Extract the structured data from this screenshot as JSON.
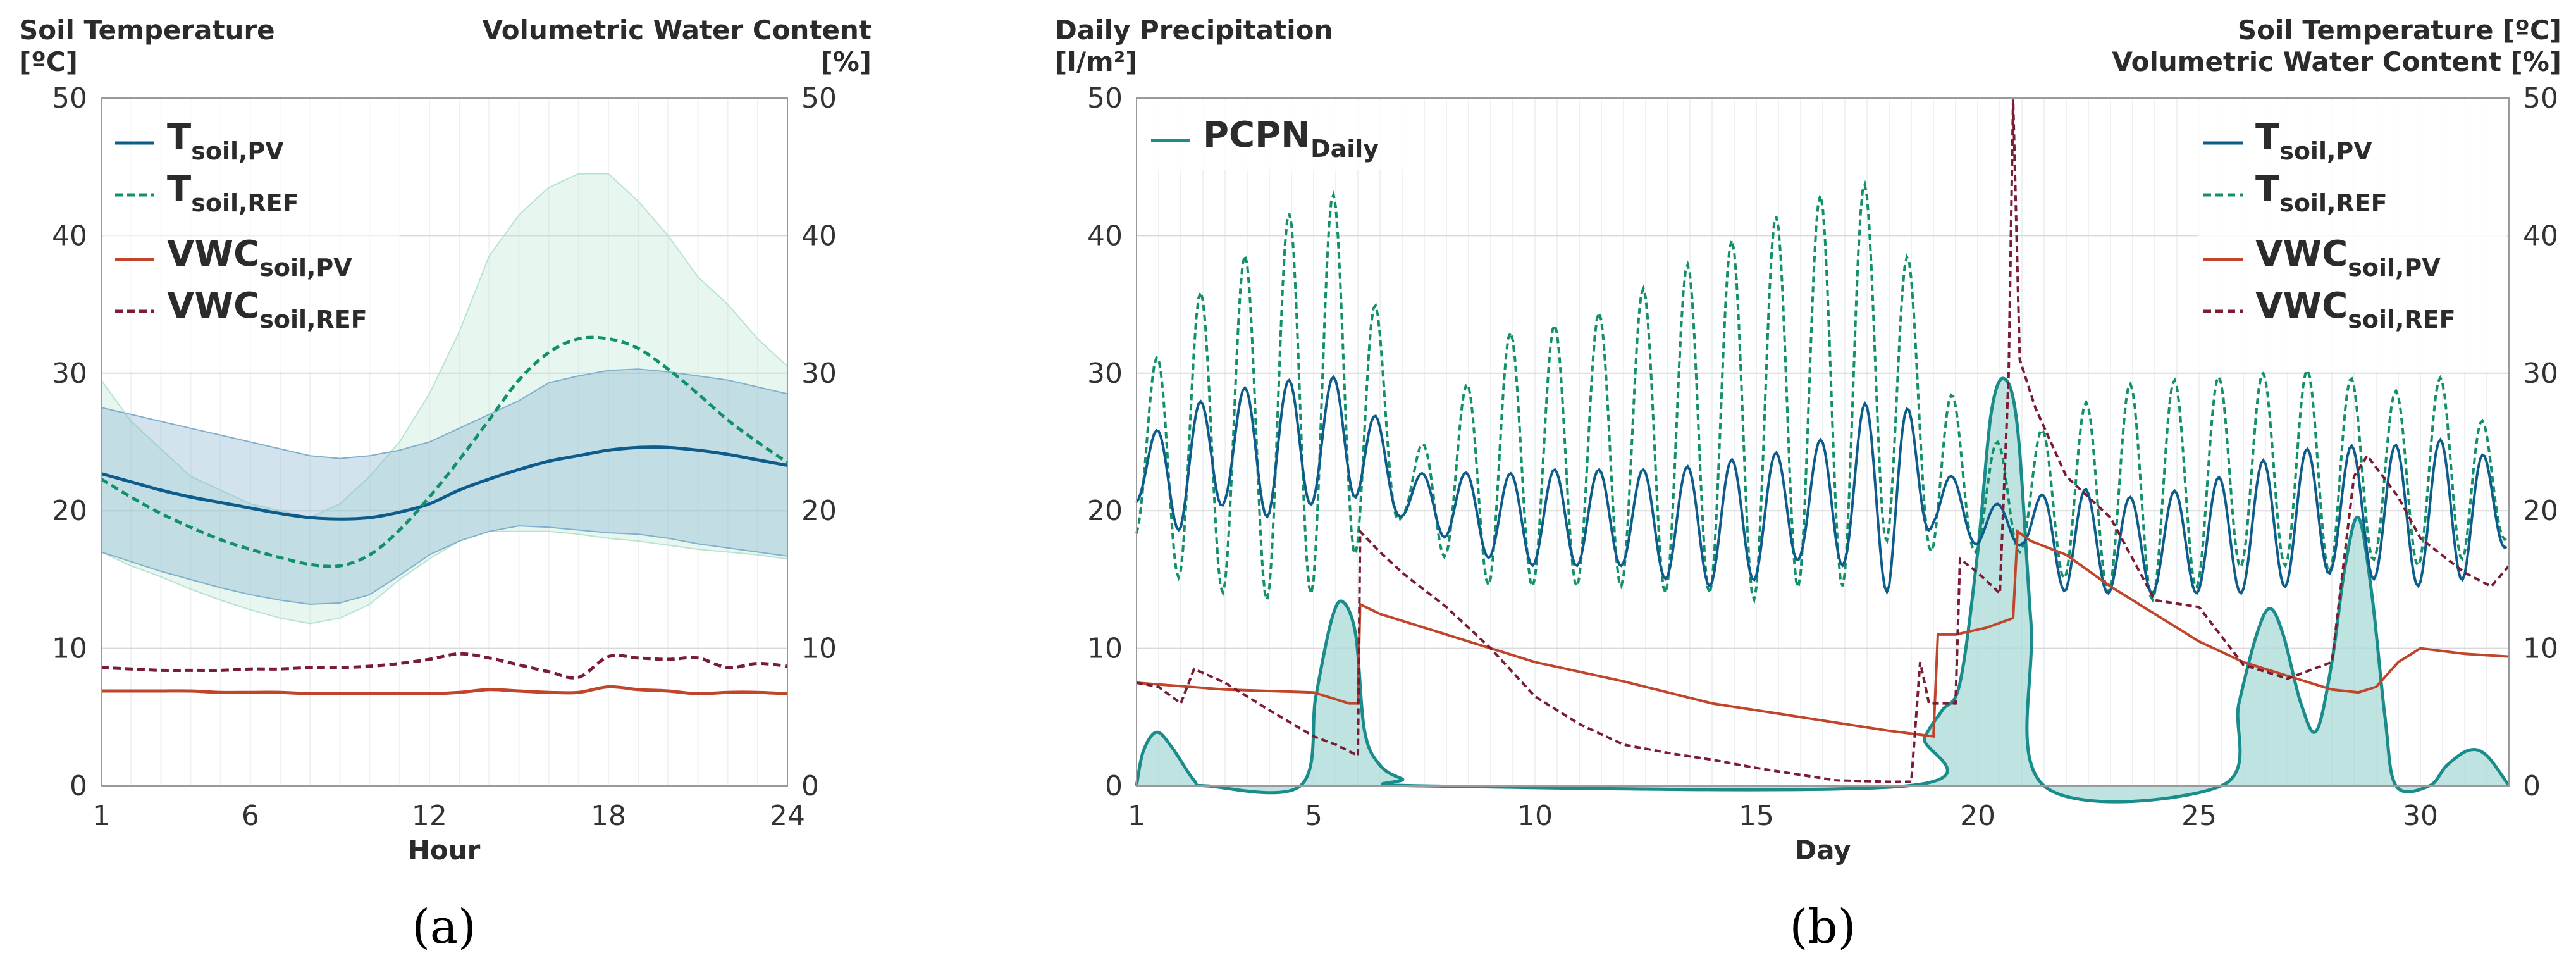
{
  "colors": {
    "tsoil_pv": "#0d5c8c",
    "tsoil_ref": "#12906a",
    "vwc_pv": "#c0452a",
    "vwc_ref": "#7a1c34",
    "pcpn": "#1a8c8c",
    "pcpn_fill": "#a8d9d6",
    "band_pv": "#7fb0cd",
    "band_ref": "#b8e3d1",
    "grid": "#d9d9d9",
    "minor_grid": "#eef2f5"
  },
  "chart_data": [
    {
      "id": "a",
      "type": "line",
      "panel_label": "(a)",
      "title_left": [
        "Soil Temperature",
        "[ºC]"
      ],
      "title_right": [
        "Volumetric Water Content",
        "[%]"
      ],
      "xlabel": "Hour",
      "xlim": [
        1,
        24
      ],
      "ylim": [
        0,
        50
      ],
      "xticks": [
        1,
        6,
        12,
        18,
        24
      ],
      "yticks": [
        0,
        10,
        20,
        30,
        40,
        50
      ],
      "legend": [
        {
          "main": "T",
          "sub": "soil,PV",
          "style": "solid",
          "color_key": "tsoil_pv"
        },
        {
          "main": "T",
          "sub": "soil,REF",
          "style": "dashed",
          "color_key": "tsoil_ref"
        },
        {
          "main": "VWC",
          "sub": "soil,PV",
          "style": "solid",
          "color_key": "vwc_pv"
        },
        {
          "main": "VWC",
          "sub": "soil,REF",
          "style": "dashed",
          "color_key": "vwc_ref"
        }
      ],
      "x": [
        1,
        2,
        3,
        4,
        5,
        6,
        7,
        8,
        9,
        10,
        11,
        12,
        13,
        14,
        15,
        16,
        17,
        18,
        19,
        20,
        21,
        22,
        23,
        24
      ],
      "series": [
        {
          "name": "Tsoil,REF band",
          "kind": "band",
          "color_key": "band_ref",
          "upper": [
            29.5,
            26.5,
            24.5,
            22.5,
            21.5,
            20.5,
            20.0,
            19.5,
            20.5,
            22.5,
            25.0,
            28.5,
            33.0,
            38.5,
            41.5,
            43.5,
            44.5,
            44.5,
            42.5,
            40.0,
            37.0,
            35.0,
            32.5,
            30.5
          ],
          "lower": [
            17.0,
            16.0,
            15.2,
            14.3,
            13.5,
            12.8,
            12.2,
            11.8,
            12.2,
            13.2,
            15.0,
            16.5,
            17.8,
            18.5,
            18.5,
            18.5,
            18.3,
            18.0,
            17.8,
            17.5,
            17.2,
            17.0,
            16.8,
            16.5
          ]
        },
        {
          "name": "Tsoil,PV band",
          "kind": "band",
          "color_key": "band_pv",
          "upper": [
            27.5,
            27.0,
            26.5,
            26.0,
            25.5,
            25.0,
            24.5,
            24.0,
            23.8,
            24.0,
            24.4,
            25.0,
            26.0,
            27.0,
            28.0,
            29.3,
            29.8,
            30.2,
            30.3,
            30.1,
            29.8,
            29.5,
            29.0,
            28.5
          ],
          "lower": [
            17.0,
            16.3,
            15.6,
            15.0,
            14.4,
            13.9,
            13.5,
            13.2,
            13.3,
            13.9,
            15.3,
            16.8,
            17.8,
            18.5,
            18.9,
            18.8,
            18.6,
            18.4,
            18.3,
            18.0,
            17.6,
            17.3,
            17.0,
            16.7
          ]
        },
        {
          "name": "Tsoil,PV",
          "kind": "line",
          "style": "solid",
          "color_key": "tsoil_pv",
          "values": [
            22.7,
            22.1,
            21.5,
            21.0,
            20.6,
            20.2,
            19.8,
            19.5,
            19.4,
            19.5,
            19.9,
            20.5,
            21.5,
            22.3,
            23.0,
            23.6,
            24.0,
            24.4,
            24.6,
            24.6,
            24.4,
            24.1,
            23.7,
            23.3
          ]
        },
        {
          "name": "Tsoil,REF",
          "kind": "line",
          "style": "dashed",
          "color_key": "tsoil_ref",
          "values": [
            22.3,
            21.0,
            19.8,
            18.8,
            17.9,
            17.2,
            16.6,
            16.1,
            16.0,
            16.8,
            18.6,
            21.0,
            23.7,
            26.6,
            29.5,
            31.5,
            32.5,
            32.5,
            31.8,
            30.3,
            28.5,
            26.6,
            25.0,
            23.5
          ]
        },
        {
          "name": "VWCsoil,PV",
          "kind": "line",
          "style": "solid",
          "color_key": "vwc_pv",
          "values": [
            6.9,
            6.9,
            6.9,
            6.9,
            6.8,
            6.8,
            6.8,
            6.7,
            6.7,
            6.7,
            6.7,
            6.7,
            6.8,
            7.0,
            6.9,
            6.8,
            6.8,
            7.2,
            7.0,
            6.9,
            6.7,
            6.8,
            6.8,
            6.7
          ]
        },
        {
          "name": "VWCsoil,REF",
          "kind": "line",
          "style": "dashed",
          "color_key": "vwc_ref",
          "values": [
            8.6,
            8.5,
            8.4,
            8.4,
            8.4,
            8.5,
            8.5,
            8.6,
            8.6,
            8.7,
            8.9,
            9.2,
            9.6,
            9.3,
            8.8,
            8.3,
            7.9,
            9.4,
            9.3,
            9.2,
            9.3,
            8.6,
            8.9,
            8.7
          ]
        }
      ]
    },
    {
      "id": "b",
      "type": "line",
      "panel_label": "(b)",
      "title_left": [
        "Daily Precipitation",
        "[l/m²]"
      ],
      "title_right": [
        "Soil Temperature [ºC]",
        "Volumetric Water Content [%]"
      ],
      "xlabel": "Day",
      "xlim": [
        1,
        32
      ],
      "ylim": [
        0,
        50
      ],
      "xticks": [
        1,
        5,
        10,
        15,
        20,
        25,
        30
      ],
      "yticks": [
        0,
        10,
        20,
        30,
        40,
        50
      ],
      "legend_left": [
        {
          "main": "PCPN",
          "sub": "Daily",
          "style": "solid",
          "color_key": "pcpn"
        }
      ],
      "legend": [
        {
          "main": "T",
          "sub": "soil,PV",
          "style": "solid",
          "color_key": "tsoil_pv"
        },
        {
          "main": "T",
          "sub": "soil,REF",
          "style": "dashed",
          "color_key": "tsoil_ref"
        },
        {
          "main": "VWC",
          "sub": "soil,PV",
          "style": "solid",
          "color_key": "vwc_pv"
        },
        {
          "main": "VWC",
          "sub": "soil,REF",
          "style": "dashed",
          "color_key": "vwc_ref"
        }
      ],
      "pcpn_points": [
        [
          1,
          0
        ],
        [
          1.15,
          2.5
        ],
        [
          1.45,
          3.9
        ],
        [
          1.8,
          2.8
        ],
        [
          2.3,
          0.4
        ],
        [
          2.6,
          0
        ],
        [
          4.7,
          0
        ],
        [
          5.05,
          6.5
        ],
        [
          5.4,
          12.0
        ],
        [
          5.65,
          13.4
        ],
        [
          5.95,
          11.0
        ],
        [
          6.15,
          4.0
        ],
        [
          6.5,
          1.5
        ],
        [
          7,
          0.5
        ],
        [
          7.5,
          0
        ],
        [
          18.4,
          0
        ],
        [
          18.8,
          3.5
        ],
        [
          19.2,
          5.5
        ],
        [
          19.6,
          7.5
        ],
        [
          20.0,
          17.0
        ],
        [
          20.3,
          27.0
        ],
        [
          20.6,
          29.6
        ],
        [
          20.9,
          26.0
        ],
        [
          21.2,
          12.0
        ],
        [
          21.5,
          0
        ],
        [
          25.5,
          0
        ],
        [
          25.9,
          6.0
        ],
        [
          26.3,
          11.0
        ],
        [
          26.6,
          12.9
        ],
        [
          26.9,
          11.0
        ],
        [
          27.3,
          6.0
        ],
        [
          27.65,
          4.0
        ],
        [
          28.0,
          9.0
        ],
        [
          28.3,
          16.0
        ],
        [
          28.6,
          19.5
        ],
        [
          28.9,
          14.0
        ],
        [
          29.2,
          5.0
        ],
        [
          29.45,
          0
        ],
        [
          30.2,
          0
        ],
        [
          30.6,
          1.5
        ],
        [
          31.1,
          2.6
        ],
        [
          31.5,
          2.2
        ],
        [
          32,
          0
        ]
      ],
      "tsoil_pv": {
        "daily_means": [
          22.5,
          23,
          24.5,
          24.5,
          25,
          25.5,
          21,
          20.5,
          19.5,
          19.5,
          19.5,
          19.5,
          19,
          19,
          19.5,
          20.5,
          21,
          22,
          21.5,
          19,
          19,
          18,
          17.5,
          17.5,
          18,
          18.5,
          19.5,
          20,
          20,
          19.5,
          20.5,
          19.5
        ],
        "daily_amplitudes": [
          2,
          4.5,
          4,
          5,
          4.5,
          4.5,
          1.5,
          2.5,
          3,
          3.5,
          3.5,
          3.5,
          4,
          4.5,
          4.5,
          4,
          5,
          8,
          2.5,
          1.5,
          1.5,
          4,
          3.5,
          3.5,
          4,
          4.5,
          5,
          4.5,
          5,
          5,
          5.5,
          2
        ]
      },
      "tsoil_ref": {
        "daily_means": [
          23,
          25,
          25.5,
          27,
          28.5,
          30,
          21.5,
          21.5,
          23.5,
          24,
          24,
          25,
          25.5,
          26.5,
          27,
          28.5,
          29,
          31,
          24,
          21,
          21,
          21,
          21.5,
          21.5,
          22,
          23,
          23,
          23,
          22.5,
          22.5,
          23.5,
          19.5
        ],
        "daily_amplitudes": [
          5,
          10,
          11.5,
          13.5,
          14.5,
          13,
          2,
          5,
          9,
          9.5,
          9.5,
          10.5,
          11.5,
          12.5,
          13.5,
          14,
          14.5,
          13,
          7,
          4,
          4,
          6,
          7.5,
          8,
          7.5,
          7,
          7,
          7.5,
          6,
          6.5,
          7,
          1.5
        ]
      },
      "vwc_pv_points": [
        [
          1,
          7.5
        ],
        [
          3,
          7.0
        ],
        [
          5,
          6.8
        ],
        [
          5.8,
          6.0
        ],
        [
          6,
          6.0
        ],
        [
          6.05,
          13.2
        ],
        [
          6.5,
          12.5
        ],
        [
          8,
          11.0
        ],
        [
          10,
          9.0
        ],
        [
          12,
          7.6
        ],
        [
          14,
          6.0
        ],
        [
          16,
          5.0
        ],
        [
          18,
          4.0
        ],
        [
          19,
          3.6
        ],
        [
          19.1,
          11.0
        ],
        [
          19.5,
          11.0
        ],
        [
          20.2,
          11.5
        ],
        [
          20.8,
          12.2
        ],
        [
          20.9,
          18.5
        ],
        [
          21.2,
          17.8
        ],
        [
          22,
          16.8
        ],
        [
          23,
          14.5
        ],
        [
          24,
          12.5
        ],
        [
          25,
          10.5
        ],
        [
          26,
          9.0
        ],
        [
          27,
          8.0
        ],
        [
          28,
          7.0
        ],
        [
          28.6,
          6.8
        ],
        [
          29,
          7.2
        ],
        [
          29.5,
          9.0
        ],
        [
          30,
          10.0
        ],
        [
          31,
          9.6
        ],
        [
          32,
          9.4
        ]
      ],
      "vwc_ref_points": [
        [
          1,
          7.5
        ],
        [
          1.5,
          7.2
        ],
        [
          2,
          6.0
        ],
        [
          2.3,
          8.5
        ],
        [
          3,
          7.5
        ],
        [
          4,
          5.5
        ],
        [
          5,
          3.6
        ],
        [
          5.5,
          3.0
        ],
        [
          6,
          2.2
        ],
        [
          6.05,
          18.5
        ],
        [
          6.5,
          17.0
        ],
        [
          7,
          15.5
        ],
        [
          8,
          13.0
        ],
        [
          9,
          10.0
        ],
        [
          10,
          6.5
        ],
        [
          11,
          4.5
        ],
        [
          12,
          3.0
        ],
        [
          13,
          2.4
        ],
        [
          14,
          1.9
        ],
        [
          15,
          1.3
        ],
        [
          16,
          0.8
        ],
        [
          16.8,
          0.4
        ],
        [
          18,
          0.3
        ],
        [
          18.5,
          0.3
        ],
        [
          18.7,
          9.0
        ],
        [
          18.9,
          6.0
        ],
        [
          19.5,
          6.0
        ],
        [
          19.6,
          16.5
        ],
        [
          20.0,
          15.5
        ],
        [
          20.5,
          14.0
        ],
        [
          20.7,
          30.0
        ],
        [
          20.8,
          49.9
        ],
        [
          20.95,
          31.0
        ],
        [
          21.3,
          27.5
        ],
        [
          22,
          22.5
        ],
        [
          23,
          19.5
        ],
        [
          24,
          13.5
        ],
        [
          25,
          13.0
        ],
        [
          26,
          8.8
        ],
        [
          27,
          7.8
        ],
        [
          28,
          9.0
        ],
        [
          28.5,
          22.5
        ],
        [
          28.8,
          24.0
        ],
        [
          29.5,
          21.0
        ],
        [
          30,
          18.0
        ],
        [
          31,
          15.5
        ],
        [
          31.6,
          14.5
        ],
        [
          32,
          16.0
        ]
      ]
    }
  ]
}
